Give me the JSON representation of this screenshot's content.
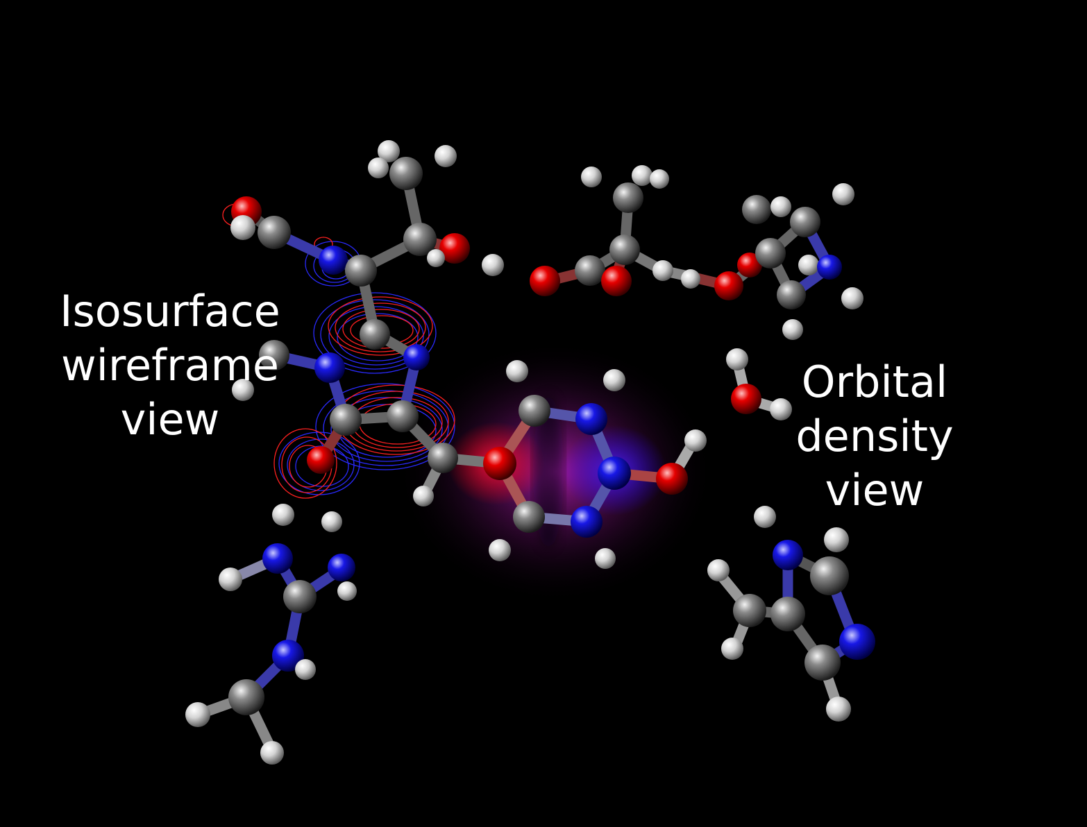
{
  "captions": {
    "left": [
      "Isosurface",
      "wireframe",
      "view"
    ],
    "right": [
      "Orbital",
      "density",
      "view"
    ]
  },
  "colors": {
    "background": "#000000",
    "carbon": "#808080",
    "hydrogen": "#ffffff",
    "nitrogen": "#1010e0",
    "oxygen": "#e00000",
    "orbital_positive": "#ff2020",
    "orbital_negative": "#2020ff",
    "caption_text": "#ffffff"
  }
}
